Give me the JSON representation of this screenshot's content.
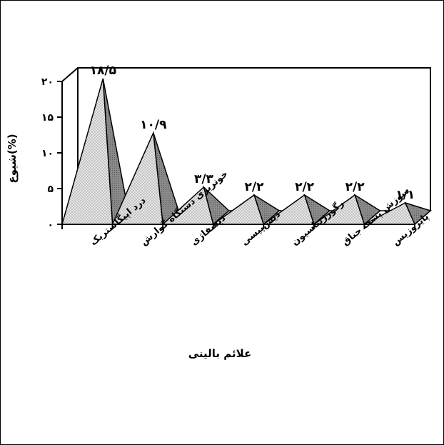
{
  "chart_data": {
    "type": "area",
    "style": "3d-pyramid",
    "categories": [
      "درد اپیگاستریک",
      "خونریزی دستگاه گوارش",
      "دیسفاژی",
      "دیس‌پپسی",
      "رگورژیتاسیون",
      "سوزش پشت جناق",
      "پایروزیس"
    ],
    "values": [
      18.5,
      10.9,
      3.3,
      2.2,
      2.2,
      2.2,
      1.1
    ],
    "data_labels": [
      "۱۸/۵",
      "۱۰/۹",
      "۳/۳",
      "۲/۲",
      "۲/۲",
      "۲/۲",
      "۱/۱"
    ],
    "ylim": [
      0,
      20
    ],
    "yticks": [
      0,
      5,
      10,
      15,
      20
    ],
    "ytick_labels": [
      "۰",
      "۵",
      "۱۰",
      "۱۵",
      "۲۰"
    ],
    "ylabel": "شیوع(%)",
    "xlabel": "علائم بالینی",
    "grid": false,
    "colors": {
      "front_face": "#dcdcdc",
      "side_face": "#8c8c8c",
      "dots": "#7a7a7a",
      "lines": "#000000"
    }
  }
}
